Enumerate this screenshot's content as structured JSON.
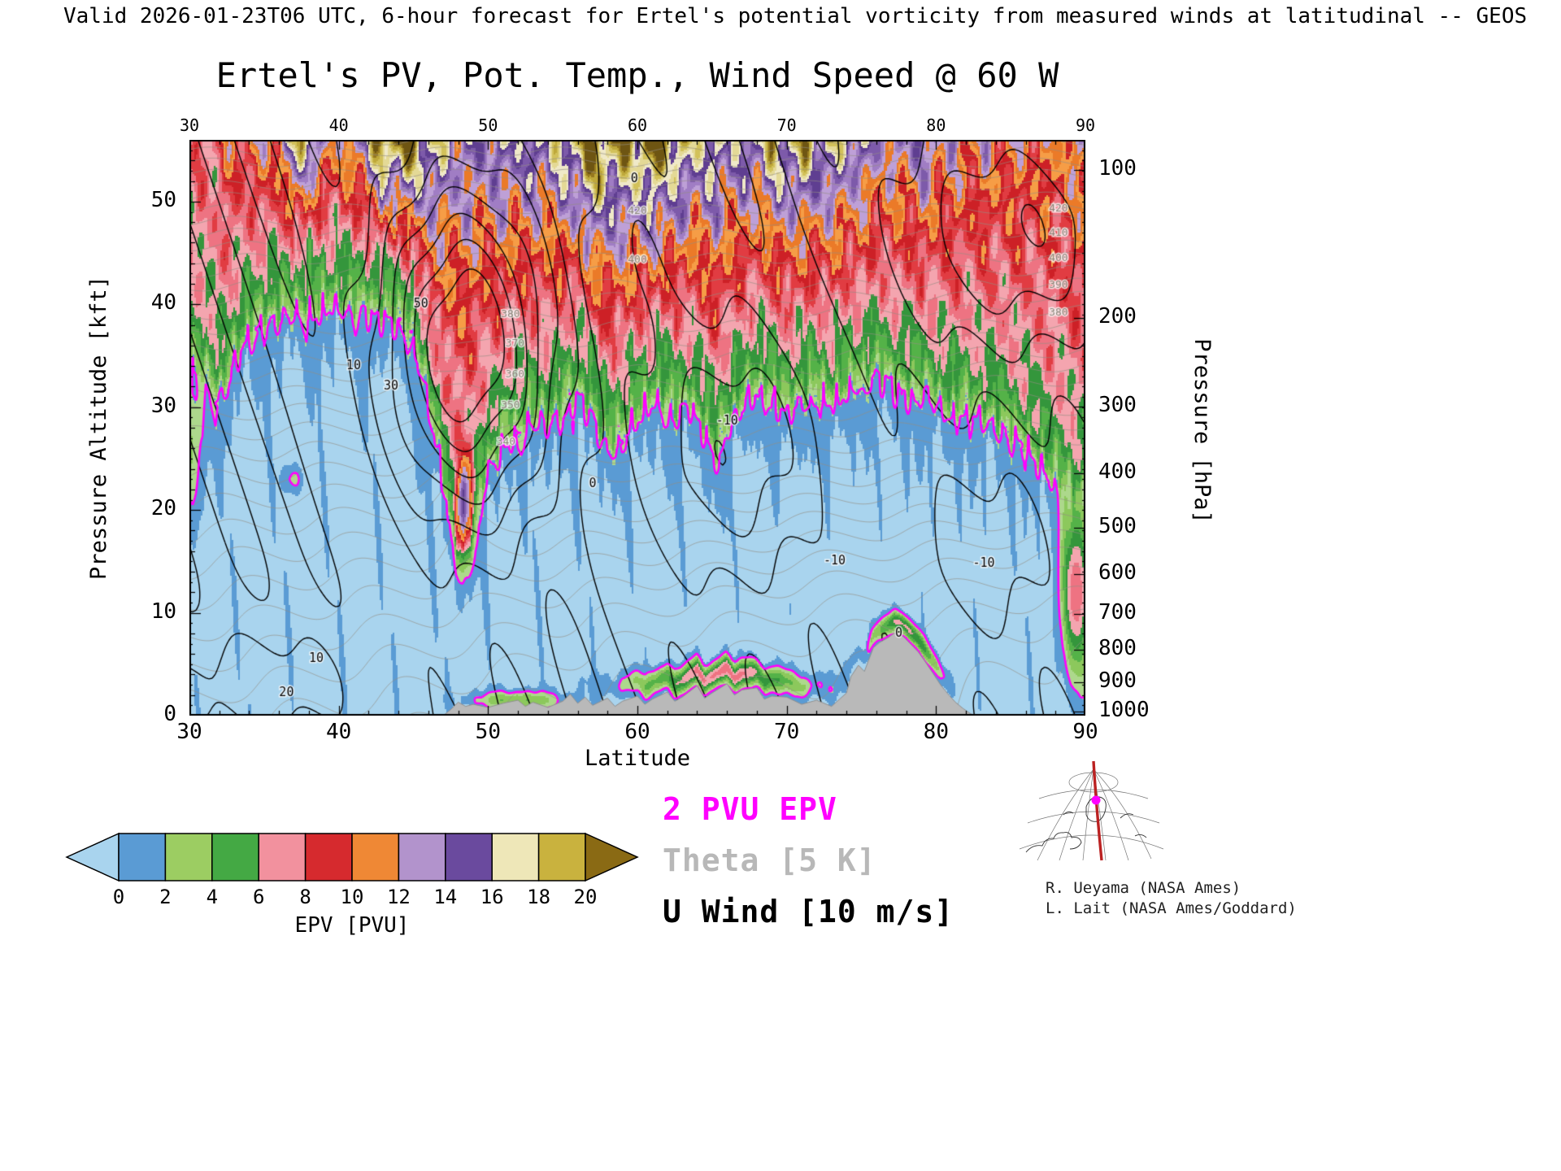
{
  "page": {
    "header": "Valid 2026-01-23T06 UTC, 6-hour forecast for Ertel's potential vorticity from measured winds at latitudinal -- GEOS"
  },
  "chart_data": {
    "type": "heatmap",
    "title": "Ertel's PV, Pot. Temp., Wind Speed @ 60 W",
    "xlabel": "Latitude",
    "ylabel_left": "Pressure Altitude [kft]",
    "ylabel_right": "Pressure [hPa]",
    "fill_field": "Ertel's potential vorticity [PVU]",
    "xlim": [
      30,
      90
    ],
    "ylim_kft": [
      0,
      56
    ],
    "x_ticks": [
      30,
      40,
      50,
      60,
      70,
      80,
      90
    ],
    "x_minor_step_deg": 2,
    "y_ticks_kft": [
      0,
      10,
      20,
      30,
      40,
      50
    ],
    "y_minor_step_kft": 2,
    "pressure_ticks_hpa": [
      100,
      200,
      300,
      400,
      500,
      600,
      700,
      800,
      900,
      1000
    ],
    "colorbar": {
      "label": "EPV [PVU]",
      "ticks": [
        0,
        2,
        4,
        6,
        8,
        10,
        12,
        14,
        16,
        18,
        20
      ],
      "under_color": "#a9d4ee",
      "over_color": "#8a6a14",
      "band_colors": [
        "#5a9bd4",
        "#9ccd62",
        "#44a944",
        "#f2919e",
        "#d62a2e",
        "#ef8835",
        "#b293cc",
        "#6a4a9e",
        "#eee7b8",
        "#c9b23e"
      ]
    },
    "plot_palette": {
      "step_pvu": 1,
      "colors": [
        "#a9d4ee",
        "#5a9bd4",
        "#add88c",
        "#8cc85c",
        "#54b248",
        "#34963c",
        "#f4a5af",
        "#ee7382",
        "#e13c42",
        "#cd2026",
        "#f69d46",
        "#eb7a28",
        "#bea0d7",
        "#a07dc4",
        "#7d5aaa",
        "#5f3e91",
        "#f0e9c8",
        "#e4d996",
        "#d2c15a",
        "#bea83a",
        "#96781e",
        "#6e5512"
      ]
    },
    "overlays": [
      {
        "label": "2 PVU EPV",
        "color": "#ff00ff",
        "legend_color": "#ff00ff",
        "level_pvu": 2
      },
      {
        "label": "Theta [5 K]",
        "color": "#948e82",
        "legend_color": "#b8b8b8",
        "interval_K": 5,
        "range_K": [
          280,
          450
        ]
      },
      {
        "label": "U Wind [10 m/s]",
        "color": "#000000",
        "legend_color": "#000000",
        "interval_ms": 10,
        "range_ms": [
          -60,
          70
        ],
        "negative_style": "dashed"
      }
    ],
    "tropopause_2pvu": {
      "lat": [
        30,
        31,
        32,
        33,
        34,
        36,
        38,
        40,
        42,
        44,
        45,
        46,
        47,
        47.6,
        48.3,
        49,
        50,
        51,
        52,
        53,
        54,
        55,
        56,
        57,
        58,
        58.7,
        59.5,
        60.5,
        61.5,
        62.5,
        63.5,
        64.5,
        65.2,
        66,
        67,
        68,
        69,
        70,
        71,
        72,
        73,
        74,
        75,
        76,
        77,
        78,
        79,
        80,
        81,
        82,
        83,
        84,
        85,
        86,
        87,
        88,
        89,
        90
      ],
      "kft": [
        33.5,
        33,
        30.5,
        34,
        37,
        38.5,
        39,
        39.5,
        39,
        38,
        36.5,
        30,
        23,
        17.5,
        15.5,
        19,
        23.5,
        26,
        27.5,
        28.5,
        28,
        29.5,
        31,
        29,
        25.5,
        26.5,
        28,
        29.5,
        30.5,
        29,
        30,
        27.5,
        25,
        27.5,
        30,
        31.5,
        31,
        29,
        30.5,
        31,
        30,
        31.5,
        32,
        33,
        32,
        31,
        31.5,
        30,
        29,
        29.5,
        28.5,
        28,
        27,
        26,
        24,
        22.5,
        21.5,
        21
      ]
    },
    "epv_top": {
      "lat": [
        30,
        32,
        34,
        36,
        37.5,
        39,
        41,
        43,
        45,
        47,
        49,
        51,
        53,
        55,
        57,
        59,
        61,
        63,
        65,
        67,
        69,
        71,
        73,
        75,
        77,
        79,
        81,
        83,
        85,
        87,
        89,
        90
      ],
      "pvu": [
        6.5,
        9,
        10.5,
        12,
        20,
        12,
        12.5,
        22,
        21,
        15.5,
        14,
        15.5,
        16,
        17,
        22,
        19,
        22,
        18,
        17,
        15.5,
        18,
        18.5,
        17,
        15.5,
        13,
        14.5,
        12,
        11.5,
        11,
        10.5,
        11.5,
        12
      ]
    },
    "terrain": {
      "lat": [
        30,
        47,
        47.5,
        48,
        48.5,
        49,
        50,
        51,
        52,
        52.5,
        53,
        54,
        55,
        55.5,
        56,
        56.5,
        57,
        58,
        58.5,
        59,
        60,
        60.5,
        61,
        62,
        62.5,
        63,
        64,
        64.5,
        65,
        66,
        66.5,
        67,
        68,
        68.5,
        69,
        70,
        71,
        72,
        73,
        74,
        74.3,
        74.8,
        75.2,
        75.8,
        76.2,
        76.8,
        77.2,
        77.8,
        78.2,
        78.8,
        79.2,
        79.8,
        80.3,
        80.8,
        81.3,
        81.8,
        82.3,
        82.6,
        90
      ],
      "kft": [
        0,
        0,
        0.6,
        1.3,
        0.9,
        1.1,
        0.8,
        1.2,
        1.5,
        0.9,
        1.3,
        0.8,
        1.4,
        2.1,
        1.2,
        1.8,
        1.0,
        1.7,
        0.9,
        1.4,
        1.9,
        1.1,
        1.6,
        2.3,
        1.4,
        1.8,
        2.9,
        1.7,
        2.2,
        3.1,
        2.0,
        2.5,
        2.7,
        1.6,
        1.9,
        1.8,
        1.1,
        1.5,
        0.9,
        2.2,
        3.8,
        4.9,
        4.3,
        6.6,
        7.1,
        7.6,
        8.0,
        7.7,
        7.1,
        6.2,
        5.4,
        4.1,
        3.0,
        2.1,
        1.3,
        0.7,
        0.2,
        0,
        0
      ]
    },
    "low_level_features": [
      {
        "amp": 7,
        "lat": 65.5,
        "lat_sigma": 5.5,
        "kft": 1.6,
        "kft_sigma": 1.2,
        "follow_terrain": true
      },
      {
        "amp": 6,
        "lat": 78,
        "lat_sigma": 2.2,
        "kft": 1.2,
        "kft_sigma": 1.0,
        "follow_terrain": true
      },
      {
        "amp": 7,
        "lat": 89.4,
        "lat_sigma": 1.0,
        "kft": 12,
        "kft_sigma": 7.5,
        "follow_terrain": false
      },
      {
        "amp": 1.8,
        "lat": 37,
        "lat_sigma": 0.8,
        "kft": 23,
        "kft_sigma": 1.3,
        "follow_terrain": false
      },
      {
        "amp": 11,
        "lat": 48.4,
        "lat_sigma": 0.55,
        "kft": 20,
        "kft_sigma": 4.5,
        "follow_terrain": false
      },
      {
        "amp": 2.2,
        "lat": 30.2,
        "lat_sigma": 0.9,
        "kft": 26,
        "kft_sigma": 7,
        "follow_terrain": false
      },
      {
        "amp": 3.5,
        "lat": 52,
        "lat_sigma": 3,
        "kft": 1.5,
        "kft_sigma": 0.9,
        "follow_terrain": false
      }
    ],
    "wind_features": [
      {
        "amp": 72,
        "lat": 48.5,
        "lat_sigma": 5.5,
        "kft": 36,
        "kft_sigma": 16
      },
      {
        "amp": -28,
        "lat": 66,
        "lat_sigma": 6.5,
        "kft": 26,
        "kft_sigma": 13
      },
      {
        "amp": -16,
        "lat": 83,
        "lat_sigma": 5.5,
        "kft": 16,
        "kft_sigma": 10
      },
      {
        "amp": 30,
        "lat": 85,
        "lat_sigma": 8,
        "kft": 47,
        "kft_sigma": 11
      },
      {
        "amp": 16,
        "lat": 35,
        "lat_sigma": 7,
        "kft": 3,
        "kft_sigma": 6
      },
      {
        "amp": -10,
        "lat": 59,
        "lat_sigma": 3.5,
        "kft": 44,
        "kft_sigma": 9
      }
    ],
    "theta_model": {
      "surface_K": 288,
      "lapse_K_per_kft": 1.05,
      "curvature": 0.033,
      "lat_gradient_K_per_deg": -0.45,
      "lat_ref": 55
    },
    "contour_labels": {
      "wind": [
        {
          "text": "50",
          "lat": 45.5,
          "kft": 40
        },
        {
          "text": "30",
          "lat": 43.5,
          "kft": 32
        },
        {
          "text": "10",
          "lat": 41,
          "kft": 34
        },
        {
          "text": "10",
          "lat": 38.5,
          "kft": 5.5
        },
        {
          "text": "20",
          "lat": 36.5,
          "kft": 2.2
        },
        {
          "text": "0",
          "lat": 57,
          "kft": 22.5
        },
        {
          "text": "0",
          "lat": 59.8,
          "kft": 52.2
        },
        {
          "text": "-10",
          "lat": 66,
          "kft": 28.6
        },
        {
          "text": "-10",
          "lat": 73.2,
          "kft": 15
        },
        {
          "text": "-10",
          "lat": 83.2,
          "kft": 14.8
        },
        {
          "text": "0",
          "lat": 77.5,
          "kft": 8
        }
      ],
      "theta": [
        {
          "text": "420",
          "lat": 88.2,
          "kft": 49.3
        },
        {
          "text": "410",
          "lat": 88.2,
          "kft": 46.9
        },
        {
          "text": "400",
          "lat": 88.2,
          "kft": 44.5
        },
        {
          "text": "390",
          "lat": 88.2,
          "kft": 41.9
        },
        {
          "text": "380",
          "lat": 88.2,
          "kft": 39.2
        },
        {
          "text": "420",
          "lat": 60,
          "kft": 49.1
        },
        {
          "text": "400",
          "lat": 60,
          "kft": 44.3
        },
        {
          "text": "380",
          "lat": 51.5,
          "kft": 39.0
        },
        {
          "text": "370",
          "lat": 51.8,
          "kft": 36.2
        },
        {
          "text": "360",
          "lat": 51.8,
          "kft": 33.2
        },
        {
          "text": "350",
          "lat": 51.5,
          "kft": 30.2
        },
        {
          "text": "340",
          "lat": 51.2,
          "kft": 26.6
        }
      ]
    }
  },
  "inset": {
    "credits": [
      "R. Ueyama (NASA Ames)",
      "L. Lait (NASA Ames/Goddard)"
    ]
  }
}
